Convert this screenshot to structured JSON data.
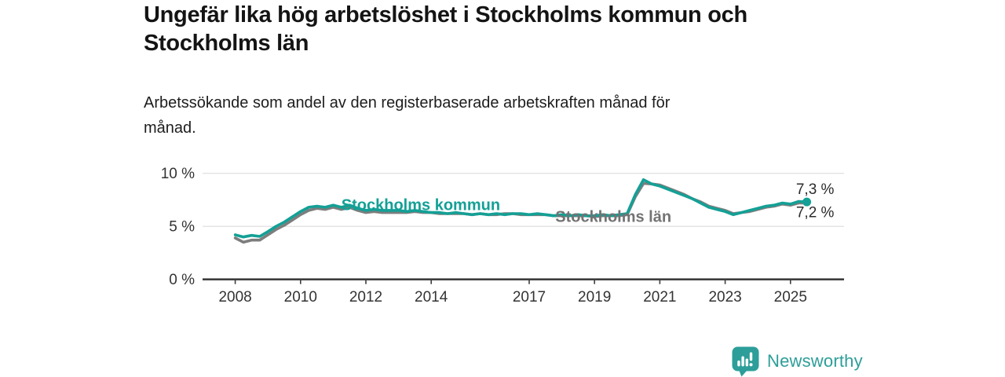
{
  "header": {
    "title": "Ungefär lika hög arbetslöshet i Stockholms kommun och\nStockholms län",
    "subtitle": "Arbetssökande som andel av den registerbaserade arbetskraften månad för\nmånad."
  },
  "footer": {
    "brand": "Newsworthy",
    "brand_color": "#2d9e99"
  },
  "chart_data": {
    "type": "line",
    "unit": "%",
    "x_start": 2008,
    "x_step": 0.25,
    "xlim": [
      2007,
      2026.64
    ],
    "ylim": [
      0,
      11.16
    ],
    "grid": "horizontal-only",
    "legend_position": "inline-labels",
    "x_ticks": [
      2008,
      2010,
      2012,
      2014,
      2017,
      2019,
      2021,
      2023,
      2025
    ],
    "y_ticks": [
      {
        "value": 0,
        "label": "0 %"
      },
      {
        "value": 5,
        "label": "5 %"
      },
      {
        "value": 10,
        "label": "10 %"
      }
    ],
    "series": [
      {
        "id": "lan",
        "name": "Stockholms län",
        "color": "#7d7d7d",
        "label_color": "#737373",
        "inline_label": {
          "text": "Stockholms län",
          "x": 2017.8,
          "y": 5.42
        },
        "end_label": {
          "text": "7,2 %",
          "x": 2025.17,
          "y": 5.85
        },
        "end_dot": false,
        "values": [
          3.9,
          3.5,
          3.7,
          3.7,
          4.2,
          4.7,
          5.1,
          5.6,
          6.1,
          6.5,
          6.7,
          6.6,
          6.8,
          6.6,
          6.8,
          6.5,
          6.3,
          6.4,
          6.3,
          6.3,
          6.3,
          6.3,
          6.4,
          6.3,
          6.3,
          6.2,
          6.2,
          6.2,
          6.2,
          6.1,
          6.2,
          6.1,
          6.1,
          6.2,
          6.2,
          6.1,
          6.1,
          6.1,
          6.1,
          6.0,
          6.0,
          6.0,
          6.0,
          6.0,
          5.9,
          6.0,
          6.0,
          6.0,
          6.1,
          7.8,
          9.05,
          9.0,
          8.9,
          8.6,
          8.3,
          8.0,
          7.6,
          7.3,
          6.9,
          6.7,
          6.5,
          6.2,
          6.3,
          6.4,
          6.6,
          6.8,
          6.9,
          7.1,
          7.0,
          7.2,
          7.2
        ]
      },
      {
        "id": "kommun",
        "name": "Stockholms kommun",
        "color": "#14a096",
        "label_color": "#14a096",
        "inline_label": {
          "text": "Stockholms kommun",
          "x": 2011.25,
          "y": 6.52
        },
        "end_label": {
          "text": "7,3 %",
          "x": 2025.17,
          "y": 8.07
        },
        "end_dot": true,
        "values": [
          4.2,
          4.0,
          4.15,
          4.05,
          4.5,
          5.0,
          5.4,
          5.9,
          6.4,
          6.8,
          6.9,
          6.8,
          7.0,
          6.8,
          7.0,
          6.7,
          6.5,
          6.6,
          6.5,
          6.5,
          6.5,
          6.4,
          6.5,
          6.4,
          6.3,
          6.3,
          6.2,
          6.3,
          6.2,
          6.1,
          6.2,
          6.1,
          6.2,
          6.1,
          6.2,
          6.2,
          6.1,
          6.2,
          6.1,
          6.0,
          6.1,
          6.0,
          6.1,
          6.0,
          6.0,
          6.1,
          6.0,
          6.1,
          6.2,
          8.0,
          9.4,
          9.0,
          8.8,
          8.5,
          8.2,
          7.9,
          7.6,
          7.2,
          6.8,
          6.6,
          6.4,
          6.1,
          6.3,
          6.5,
          6.7,
          6.9,
          7.0,
          7.2,
          7.1,
          7.35,
          7.3
        ]
      }
    ],
    "colors": {
      "grid": "#dcdcdc",
      "axis": "#3d3d3d",
      "tick_text": "#333333",
      "end_label_text": "#2b2b2b"
    }
  }
}
